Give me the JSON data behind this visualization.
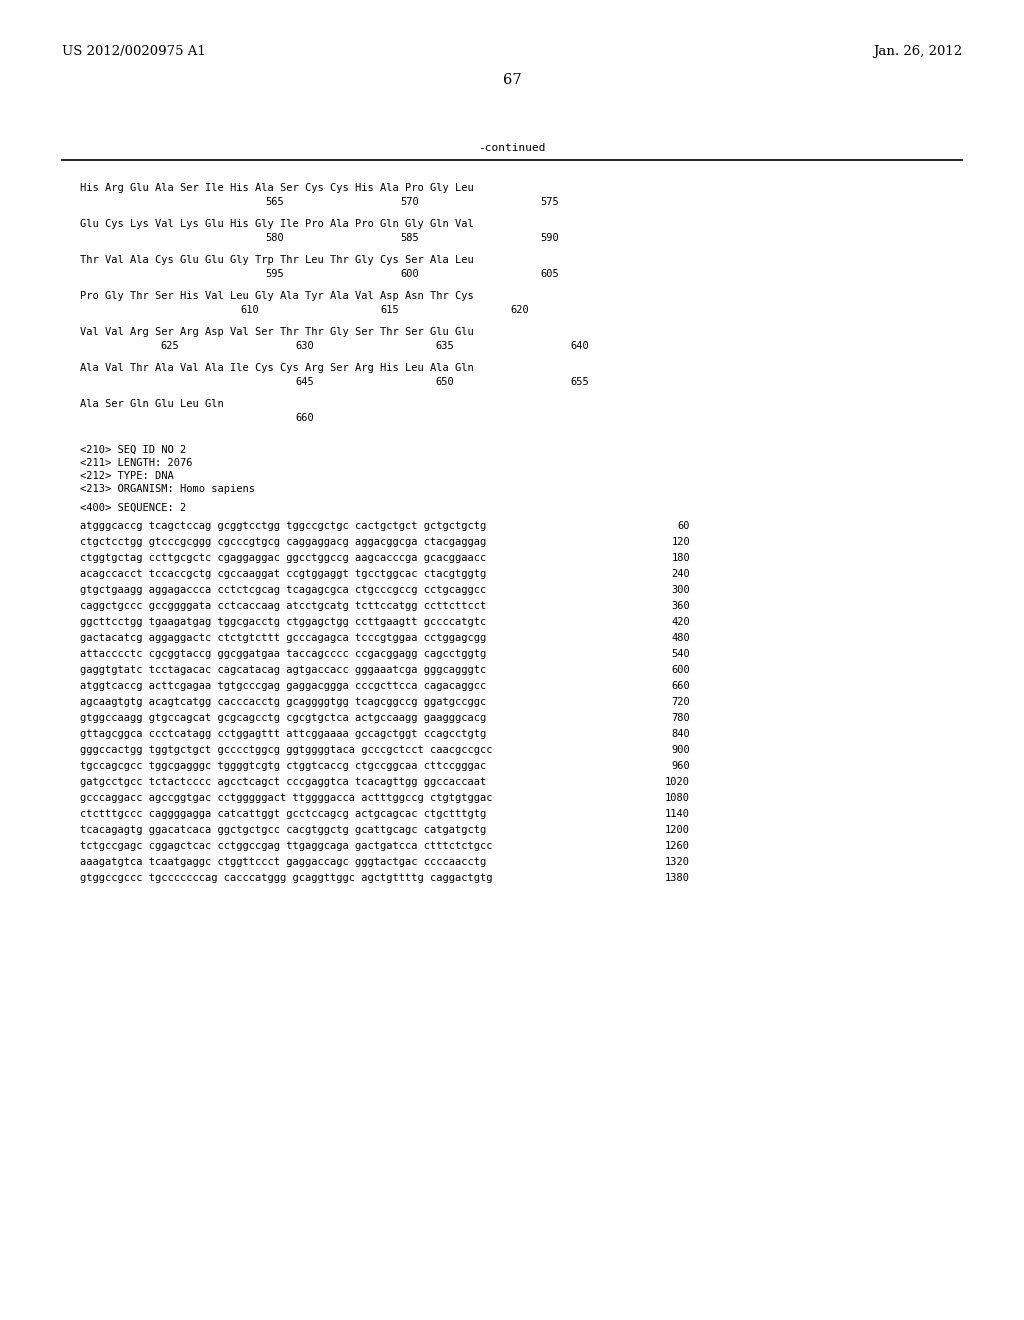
{
  "header_left": "US 2012/0020975 A1",
  "header_right": "Jan. 26, 2012",
  "page_number": "67",
  "continued_label": "-continued",
  "background_color": "#ffffff",
  "text_color": "#000000",
  "font_size_header": 9.5,
  "font_size_page": 10.5,
  "mono_fs": 7.5,
  "seq_info": [
    "<210> SEQ ID NO 2",
    "<211> LENGTH: 2076",
    "<212> TYPE: DNA",
    "<213> ORGANISM: Homo sapiens"
  ],
  "seq_label": "<400> SEQUENCE: 2",
  "dna_lines": [
    [
      "atgggcaccg tcagctccag gcggtcctgg tggccgctgc cactgctgct gctgctgctg",
      "60"
    ],
    [
      "ctgctcctgg gtcccgcggg cgcccgtgcg caggaggacg aggacggcga ctacgaggag",
      "120"
    ],
    [
      "ctggtgctag ccttgcgctc cgaggaggac ggcctggccg aagcacccga gcacggaacc",
      "180"
    ],
    [
      "acagccacct tccaccgctg cgccaaggat ccgtggaggt tgcctggcac ctacgtggtg",
      "240"
    ],
    [
      "gtgctgaagg aggagaccca cctctcgcag tcagagcgca ctgcccgccg cctgcaggcc",
      "300"
    ],
    [
      "caggctgccc gccggggata cctcaccaag atcctgcatg tcttccatgg ccttcttcct",
      "360"
    ],
    [
      "ggcttcctgg tgaagatgag tggcgacctg ctggagctgg ccttgaagtt gccccatgtc",
      "420"
    ],
    [
      "gactacatcg aggaggactc ctctgtcttt gcccagagca tcccgtggaa cctggagcgg",
      "480"
    ],
    [
      "attacccctc cgcggtaccg ggcggatgaa taccagcccc ccgacggagg cagcctggtg",
      "540"
    ],
    [
      "gaggtgtatc tcctagacac cagcatacag agtgaccacc gggaaatcga gggcagggtc",
      "600"
    ],
    [
      "atggtcaccg acttcgagaa tgtgcccgag gaggacggga cccgcttcca cagacaggcc",
      "660"
    ],
    [
      "agcaagtgtg acagtcatgg cacccacctg gcaggggtgg tcagcggccg ggatgccggc",
      "720"
    ],
    [
      "gtggccaagg gtgccagcat gcgcagcctg cgcgtgctca actgccaagg gaagggcacg",
      "780"
    ],
    [
      "gttagcggca ccctcatagg cctggagttt attcggaaaa gccagctggt ccagcctgtg",
      "840"
    ],
    [
      "gggccactgg tggtgctgct gcccctggcg ggtggggtaca gcccgctcct caacgccgcc",
      "900"
    ],
    [
      "tgccagcgcc tggcgagggc tggggtcgtg ctggtcaccg ctgccggcaa cttccgggac",
      "960"
    ],
    [
      "gatgcctgcc tctactcccc agcctcagct cccgaggtca tcacagttgg ggccaccaat",
      "1020"
    ],
    [
      "gcccaggacc agccggtgac cctgggggact ttggggacca actttggccg ctgtgtggac",
      "1080"
    ],
    [
      "ctctttgccc caggggagga catcattggt gcctccagcg actgcagcac ctgctttgtg",
      "1140"
    ],
    [
      "tcacagagtg ggacatcaca ggctgctgcc cacgtggctg gcattgcagc catgatgctg",
      "1200"
    ],
    [
      "tctgccgagc cggagctcac cctggccgag ttgaggcaga gactgatcca ctttctctgcc",
      "1260"
    ],
    [
      "aaagatgtca tcaatgaggc ctggttccct gaggaccagc gggtactgac ccccaacctg",
      "1320"
    ],
    [
      "gtggccgccc tgcccccccag cacccatggg gcaggttggc agctgttttg caggactgtg",
      "1380"
    ]
  ],
  "amino_blocks": [
    {
      "seq": "His Arg Glu Ala Ser Ile His Ala Ser Cys Cys His Ala Pro Gly Leu",
      "nums": [
        [
          "565",
          185
        ],
        [
          "570",
          320
        ],
        [
          "575",
          460
        ]
      ]
    },
    {
      "seq": "Glu Cys Lys Val Lys Glu His Gly Ile Pro Ala Pro Gln Gly Gln Val",
      "nums": [
        [
          "580",
          185
        ],
        [
          "585",
          320
        ],
        [
          "590",
          460
        ]
      ]
    },
    {
      "seq": "Thr Val Ala Cys Glu Glu Gly Trp Thr Leu Thr Gly Cys Ser Ala Leu",
      "nums": [
        [
          "595",
          185
        ],
        [
          "600",
          320
        ],
        [
          "605",
          460
        ]
      ]
    },
    {
      "seq": "Pro Gly Thr Ser His Val Leu Gly Ala Tyr Ala Val Asp Asn Thr Cys",
      "nums": [
        [
          "610",
          160
        ],
        [
          "615",
          300
        ],
        [
          "620",
          430
        ]
      ]
    },
    {
      "seq": "Val Val Arg Ser Arg Asp Val Ser Thr Thr Gly Ser Thr Ser Glu Glu",
      "nums": [
        [
          "625",
          80
        ],
        [
          "630",
          215
        ],
        [
          "635",
          355
        ],
        [
          "640",
          490
        ]
      ]
    },
    {
      "seq": "Ala Val Thr Ala Val Ala Ile Cys Cys Arg Ser Arg His Leu Ala Gln",
      "nums": [
        [
          "645",
          215
        ],
        [
          "650",
          355
        ],
        [
          "655",
          490
        ]
      ]
    },
    {
      "seq": "Ala Ser Gln Glu Leu Gln",
      "nums": [
        [
          "660",
          215
        ]
      ]
    }
  ]
}
